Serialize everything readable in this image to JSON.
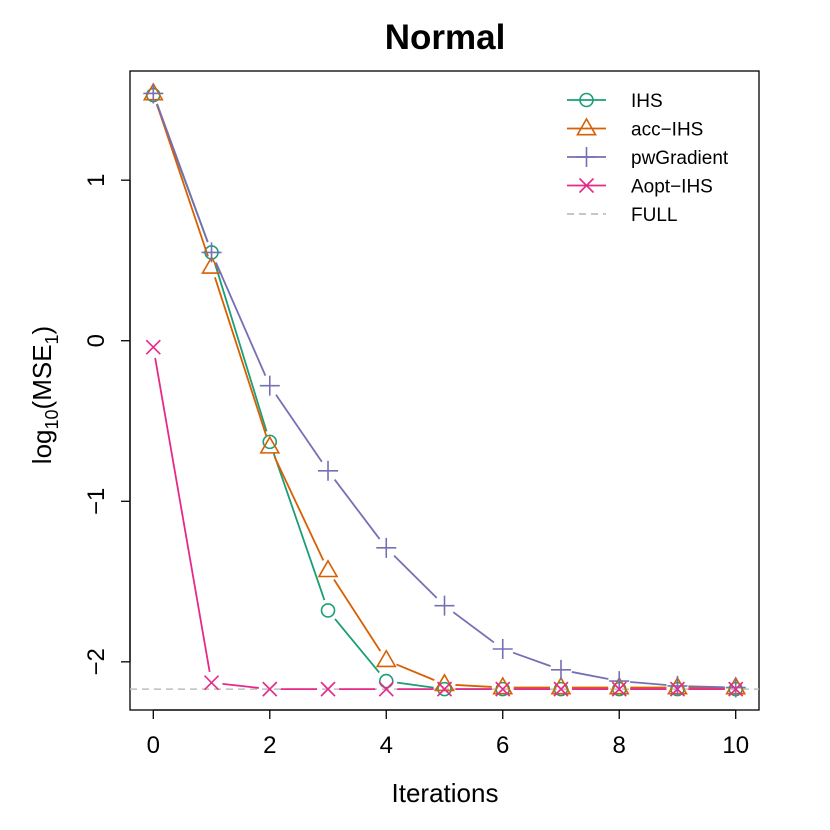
{
  "chart_data": {
    "type": "line",
    "title": "Normal",
    "xlabel": "Iterations",
    "ylabel": {
      "base": "log",
      "sub1": "10",
      "mid": "(MSE",
      "sub2": "1",
      "end": ")"
    },
    "xlim": [
      -0.4,
      10.4
    ],
    "ylim": [
      -2.3,
      1.68
    ],
    "x_ticks": [
      0,
      2,
      4,
      6,
      8,
      10
    ],
    "x_tick_labels": [
      "0",
      "2",
      "4",
      "6",
      "8",
      "10"
    ],
    "y_ticks": [
      -2,
      -1,
      0,
      1
    ],
    "y_tick_labels": [
      "−2",
      "−1",
      "0",
      "1"
    ],
    "x": [
      0,
      1,
      2,
      3,
      4,
      5,
      6,
      7,
      8,
      9,
      10
    ],
    "series": [
      {
        "name": "IHS",
        "color": "#1B9E77",
        "marker": "circle",
        "values": [
          1.53,
          0.55,
          -0.63,
          -1.68,
          -2.12,
          -2.17,
          -2.17,
          -2.17,
          -2.17,
          -2.17,
          -2.17
        ]
      },
      {
        "name": "acc−IHS",
        "color": "#D95F02",
        "marker": "triangle",
        "values": [
          1.54,
          0.46,
          -0.66,
          -1.43,
          -1.99,
          -2.14,
          -2.16,
          -2.16,
          -2.16,
          -2.16,
          -2.16
        ]
      },
      {
        "name": "pwGradient",
        "color": "#7570B3",
        "marker": "plus",
        "values": [
          1.54,
          0.55,
          -0.28,
          -0.81,
          -1.29,
          -1.65,
          -1.92,
          -2.05,
          -2.12,
          -2.15,
          -2.16
        ]
      },
      {
        "name": "Aopt−IHS",
        "color": "#E7298A",
        "marker": "cross",
        "values": [
          -0.04,
          -2.13,
          -2.17,
          -2.17,
          -2.17,
          -2.17,
          -2.17,
          -2.17,
          -2.17,
          -2.17,
          -2.17
        ]
      }
    ],
    "reference_line": {
      "name": "FULL",
      "y": -2.17,
      "color": "#BEBEBE",
      "style": "dashed"
    },
    "legend_position": "top-right",
    "grid": false
  }
}
